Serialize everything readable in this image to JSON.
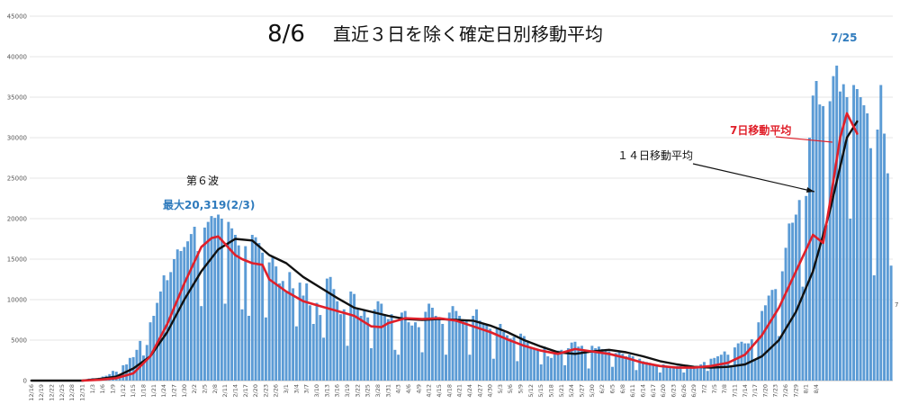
{
  "chart_data": {
    "type": "bar",
    "title_date": "8/6",
    "title": "直近３日を除く確定日別移動平均",
    "xlabel": "",
    "ylabel": "",
    "ylim": [
      0,
      45000
    ],
    "y_ticks": [
      0,
      5000,
      10000,
      15000,
      20000,
      25000,
      30000,
      35000,
      40000,
      45000
    ],
    "y_tick_labels": [
      "0",
      "5000",
      "10000",
      "15000",
      "20000",
      "25000",
      "30000",
      "35000",
      "40000",
      "45000"
    ],
    "x_tick_labels": [
      "12/16",
      "12/19",
      "12/22",
      "12/25",
      "12/28",
      "12/31",
      "1/3",
      "1/6",
      "1/9",
      "1/12",
      "1/15",
      "1/18",
      "1/21",
      "1/24",
      "1/27",
      "1/30",
      "2/2",
      "2/5",
      "2/8",
      "2/11",
      "2/14",
      "2/17",
      "2/20",
      "2/23",
      "2/26",
      "3/1",
      "3/4",
      "3/7",
      "3/10",
      "3/13",
      "3/16",
      "3/19",
      "3/22",
      "3/25",
      "3/28",
      "3/31",
      "4/3",
      "4/6",
      "4/9",
      "4/12",
      "4/15",
      "4/18",
      "4/21",
      "4/24",
      "4/27",
      "4/30",
      "5/3",
      "5/6",
      "5/9",
      "5/12",
      "5/15",
      "5/18",
      "5/21",
      "5/24",
      "5/27",
      "5/30",
      "6/2",
      "6/5",
      "6/8",
      "6/11",
      "6/14",
      "6/17",
      "6/20",
      "6/23",
      "6/26",
      "6/29",
      "7/2",
      "7/5",
      "7/8",
      "7/11",
      "7/14",
      "7/17",
      "7/20",
      "7/23",
      "7/26",
      "7/29",
      "8/1",
      "8/4"
    ],
    "start_date": "12/16",
    "grid": true,
    "series": [
      {
        "name": "",
        "color": "#5b9bd5",
        "values": [
          0,
          0,
          0,
          0,
          0,
          0,
          0,
          0,
          0,
          0,
          0,
          0,
          0,
          0,
          0,
          50,
          150,
          250,
          300,
          250,
          350,
          500,
          600,
          800,
          1200,
          1100,
          800,
          1900,
          2000,
          2800,
          2900,
          3800,
          4900,
          3100,
          4400,
          7200,
          8000,
          9600,
          11000,
          13000,
          12400,
          13400,
          15000,
          16200,
          16000,
          16500,
          17200,
          18100,
          19000,
          16000,
          9200,
          18900,
          19600,
          20319,
          20100,
          20500,
          20000,
          9500,
          19600,
          18800,
          18000,
          16700,
          8800,
          16600,
          8000,
          18000,
          17700,
          17000,
          15800,
          7800,
          14600,
          15200,
          14100,
          12000,
          12300,
          11000,
          13400,
          11400,
          6700,
          12100,
          10500,
          12000,
          9300,
          7000,
          9600,
          8100,
          5300,
          12600,
          12800,
          11300,
          9800,
          8200,
          8800,
          4300,
          11000,
          10700,
          9000,
          8000,
          8800,
          7800,
          4000,
          8800,
          9800,
          9500,
          8200,
          7600,
          8200,
          3800,
          3200,
          8400,
          8600,
          7200,
          6800,
          7200,
          6600,
          3500,
          8500,
          9500,
          9000,
          8000,
          7500,
          7000,
          3200,
          8400,
          9200,
          8600,
          8000,
          7400,
          7500,
          3200,
          8000,
          8800,
          7400,
          7000,
          7000,
          6400,
          2700,
          6400,
          7000,
          6000,
          5600,
          5200,
          5400,
          2400,
          5800,
          5500,
          4700,
          4000,
          4000,
          3900,
          2000,
          4200,
          3000,
          2800,
          3300,
          3700,
          3800,
          1900,
          4000,
          4700,
          4800,
          4200,
          4300,
          3700,
          1500,
          4300,
          4000,
          4200,
          3900,
          3900,
          3600,
          1700,
          3400,
          3600,
          3300,
          3000,
          3200,
          3000,
          1300,
          2700,
          2400,
          2300,
          2200,
          2000,
          2000,
          1000,
          2000,
          1800,
          1600,
          1700,
          1800,
          1800,
          1000,
          1800,
          1600,
          1500,
          1800,
          2000,
          2300,
          1200,
          2700,
          2800,
          3000,
          3200,
          3600,
          3200,
          1900,
          4100,
          4600,
          4800,
          4600,
          4600,
          5100,
          2500,
          7200,
          8600,
          9300,
          10500,
          11200,
          11300,
          5500,
          13500,
          16400,
          19400,
          19500,
          20500,
          22300,
          11600,
          22800,
          30000,
          35200,
          37000,
          34100,
          33900,
          19200,
          34500,
          37600,
          38900,
          35700,
          36600,
          35000,
          20000,
          36500,
          36000,
          35000,
          34000,
          33000,
          28700,
          13000,
          31000,
          36500,
          30500,
          25600,
          14200
        ]
      },
      {
        "name": "14日移動平均",
        "color": "#111111",
        "x": [
          0,
          15,
          20,
          25,
          30,
          35,
          40,
          45,
          50,
          55,
          60,
          65,
          70,
          75,
          80,
          85,
          90,
          95,
          100,
          105,
          110,
          115,
          120,
          125,
          130,
          135,
          140,
          145,
          150,
          155,
          160,
          165,
          170,
          175,
          180,
          185,
          190,
          195,
          200,
          205,
          210,
          215,
          220,
          225,
          230,
          235,
          240,
          243
        ],
        "values": [
          0,
          0,
          200,
          500,
          1500,
          3000,
          6000,
          10000,
          13500,
          16200,
          17500,
          17300,
          15500,
          14500,
          12800,
          11500,
          10200,
          9000,
          8500,
          8000,
          7600,
          7500,
          7600,
          7500,
          7400,
          6800,
          6000,
          5000,
          4200,
          3500,
          3300,
          3600,
          3800,
          3500,
          3000,
          2400,
          2000,
          1700,
          1600,
          1700,
          2000,
          3000,
          5000,
          8500,
          13500,
          21000,
          30000,
          32000
        ]
      },
      {
        "name": "7日移動平均",
        "color": "#e0202a",
        "x": [
          15,
          20,
          25,
          30,
          35,
          40,
          45,
          50,
          53,
          55,
          60,
          62,
          65,
          68,
          70,
          75,
          80,
          85,
          90,
          95,
          100,
          103,
          105,
          110,
          115,
          120,
          125,
          130,
          135,
          140,
          145,
          150,
          155,
          160,
          165,
          170,
          175,
          180,
          185,
          190,
          195,
          200,
          205,
          210,
          215,
          220,
          225,
          230,
          233,
          235,
          238,
          240,
          243
        ],
        "values": [
          0,
          100,
          300,
          900,
          3000,
          7000,
          12000,
          16500,
          17600,
          17800,
          15500,
          15000,
          14500,
          14300,
          12500,
          11000,
          9800,
          9200,
          8600,
          8000,
          6700,
          6600,
          7100,
          7700,
          7600,
          7700,
          7400,
          6700,
          6000,
          5100,
          4300,
          3700,
          3300,
          3900,
          3600,
          3300,
          2800,
          2200,
          1800,
          1600,
          1600,
          1800,
          2200,
          3200,
          5600,
          9000,
          13500,
          18000,
          17000,
          22000,
          30000,
          33000,
          30500
        ]
      }
    ],
    "annotations": {
      "wave6_label": "第６波",
      "wave6_max": "最大20,319(2/3)",
      "peak_date": "7/25",
      "ma14_label": "１４日移動平均",
      "ma7_label": "7日移動平均"
    },
    "edge_label": "7"
  }
}
